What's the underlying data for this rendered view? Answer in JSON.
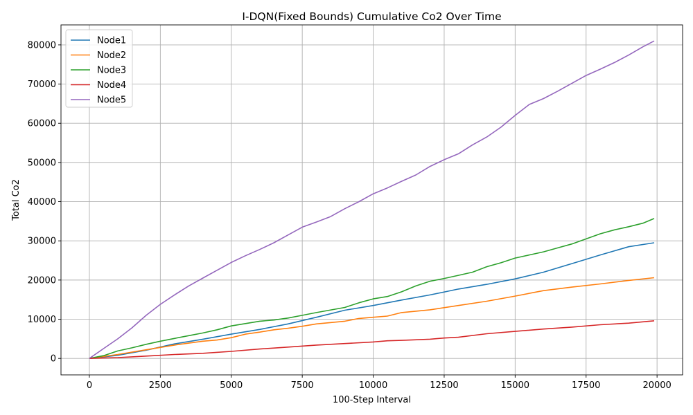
{
  "chart_data": {
    "type": "line",
    "title": "I-DQN(Fixed Bounds) Cumulative Co2 Over Time",
    "xlabel": "100-Step Interval",
    "ylabel": "Total Co2",
    "xlim": [
      -1000,
      20900
    ],
    "ylim": [
      -4200,
      85100
    ],
    "xticks": [
      0,
      2500,
      5000,
      7500,
      10000,
      12500,
      15000,
      17500,
      20000
    ],
    "xtick_labels": [
      "0",
      "2500",
      "5000",
      "7500",
      "10000",
      "12500",
      "15000",
      "17500",
      "20000"
    ],
    "yticks": [
      0,
      10000,
      20000,
      30000,
      40000,
      50000,
      60000,
      70000,
      80000
    ],
    "ytick_labels": [
      "0",
      "10000",
      "20000",
      "30000",
      "40000",
      "50000",
      "60000",
      "70000",
      "80000"
    ],
    "grid": true,
    "legend_position": "upper-left",
    "series": [
      {
        "name": "Node1",
        "color": "#1f77b4",
        "x": [
          0,
          1000,
          2000,
          3000,
          4000,
          5000,
          6000,
          7000,
          8000,
          9000,
          10000,
          11000,
          12000,
          13000,
          14000,
          15000,
          16000,
          17000,
          18000,
          19000,
          19900
        ],
        "y": [
          0,
          800,
          2100,
          3700,
          4900,
          6200,
          7400,
          8800,
          10500,
          12300,
          13500,
          14900,
          16200,
          17700,
          18900,
          20300,
          22000,
          24200,
          26400,
          28500,
          29500
        ]
      },
      {
        "name": "Node2",
        "color": "#ff7f0e",
        "x": [
          0,
          1000,
          2000,
          3000,
          4000,
          4500,
          5000,
          5500,
          6000,
          6500,
          7000,
          7500,
          8000,
          9000,
          9500,
          10000,
          10500,
          11000,
          12000,
          13000,
          14000,
          15000,
          16000,
          17000,
          18000,
          19000,
          19900
        ],
        "y": [
          0,
          1000,
          2200,
          3400,
          4400,
          4700,
          5300,
          6200,
          6700,
          7300,
          7700,
          8200,
          8800,
          9500,
          10200,
          10500,
          10800,
          11700,
          12400,
          13500,
          14600,
          15900,
          17300,
          18200,
          19000,
          19900,
          20600
        ]
      },
      {
        "name": "Node3",
        "color": "#2ca02c",
        "x": [
          0,
          500,
          1000,
          1500,
          2000,
          2500,
          3000,
          3500,
          4000,
          4500,
          5000,
          5500,
          6000,
          6500,
          7000,
          7500,
          8000,
          9000,
          9500,
          10000,
          10500,
          11000,
          11500,
          12000,
          12500,
          13000,
          13500,
          14000,
          14500,
          15000,
          15500,
          16000,
          16500,
          17000,
          17500,
          18000,
          18500,
          19000,
          19500,
          19900
        ],
        "y": [
          0,
          700,
          1900,
          2700,
          3600,
          4400,
          5100,
          5800,
          6500,
          7300,
          8300,
          8900,
          9500,
          9800,
          10300,
          11000,
          11700,
          13000,
          14200,
          15200,
          15800,
          17000,
          18500,
          19700,
          20400,
          21200,
          22000,
          23400,
          24400,
          25600,
          26400,
          27200,
          28200,
          29200,
          30500,
          31800,
          32800,
          33600,
          34500,
          35700
        ]
      },
      {
        "name": "Node4",
        "color": "#d62728",
        "x": [
          0,
          1000,
          2000,
          2500,
          3000,
          4000,
          5000,
          6000,
          7000,
          8000,
          9000,
          10000,
          10500,
          11000,
          12000,
          12500,
          13000,
          14000,
          15000,
          16000,
          17000,
          18000,
          19000,
          19900
        ],
        "y": [
          0,
          200,
          600,
          800,
          1000,
          1300,
          1800,
          2400,
          2900,
          3400,
          3800,
          4200,
          4500,
          4600,
          4900,
          5200,
          5400,
          6300,
          6900,
          7500,
          8000,
          8600,
          9000,
          9600
        ]
      },
      {
        "name": "Node5",
        "color": "#9467bd",
        "x": [
          0,
          500,
          1000,
          1500,
          2000,
          2500,
          3000,
          3500,
          4000,
          4500,
          5000,
          5500,
          6000,
          6500,
          7000,
          7500,
          8000,
          8500,
          9000,
          9500,
          10000,
          10500,
          11000,
          11500,
          12000,
          12500,
          13000,
          13500,
          14000,
          14500,
          15000,
          15500,
          16000,
          16500,
          17000,
          17500,
          18000,
          18500,
          19000,
          19500,
          19900
        ],
        "y": [
          0,
          2500,
          5000,
          7800,
          11000,
          13800,
          16200,
          18500,
          20500,
          22500,
          24500,
          26200,
          27800,
          29500,
          31500,
          33500,
          34800,
          36200,
          38200,
          40000,
          42000,
          43500,
          45200,
          46800,
          49000,
          50700,
          52200,
          54500,
          56500,
          59000,
          62000,
          64800,
          66300,
          68200,
          70200,
          72200,
          73800,
          75500,
          77400,
          79500,
          81000
        ]
      }
    ]
  }
}
